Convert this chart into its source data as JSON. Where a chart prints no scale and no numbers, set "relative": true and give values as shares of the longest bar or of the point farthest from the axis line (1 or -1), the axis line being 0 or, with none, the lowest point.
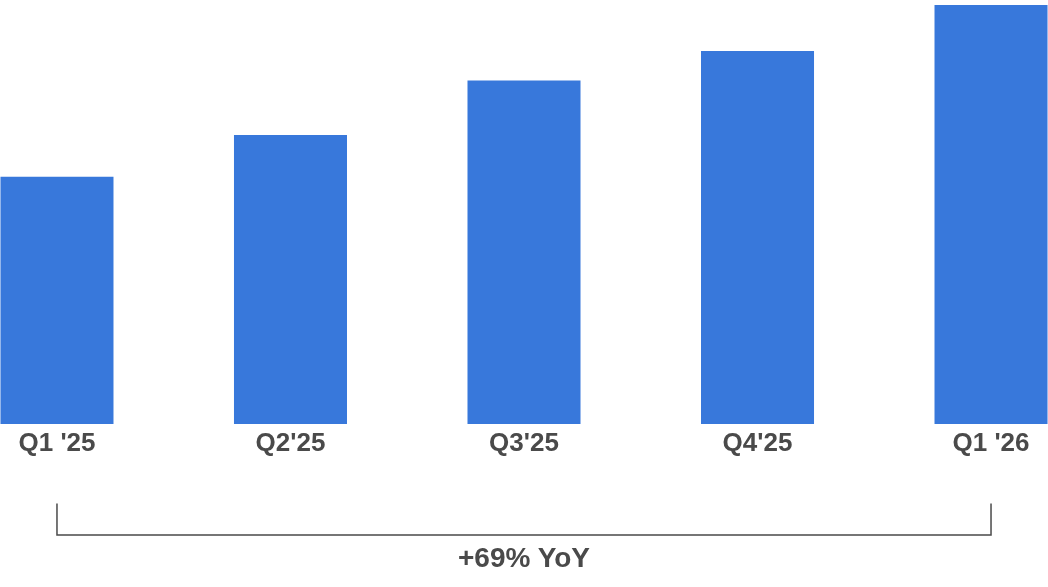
{
  "chart_data": {
    "type": "bar",
    "relative": true,
    "categories": [
      "Q1 '25",
      "Q2'25",
      "Q3'25",
      "Q4'25",
      "Q1 '26"
    ],
    "values": [
      0.59,
      0.69,
      0.82,
      0.89,
      1.0
    ],
    "color": "#3878db",
    "annotations": [
      "+69% YoY"
    ],
    "legend": false
  }
}
